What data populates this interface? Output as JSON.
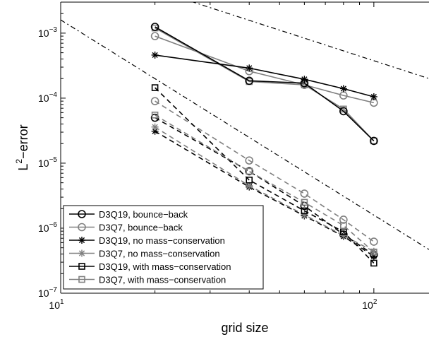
{
  "chart_data": {
    "type": "line",
    "x_scale": "log",
    "y_scale": "log",
    "xlim": [
      10,
      150
    ],
    "ylim": [
      1e-07,
      0.003
    ],
    "xlabel": "grid size",
    "ylabel_base": "L",
    "ylabel_sup": "2",
    "ylabel_rest": "−error",
    "title": "",
    "grid": false,
    "legend_position": "bottom-left",
    "x_ticks": [
      {
        "value": 10,
        "base": "10",
        "exp": "1"
      },
      {
        "value": 100,
        "base": "10",
        "exp": "2"
      }
    ],
    "y_ticks": [
      {
        "value": 1e-07,
        "base": "10",
        "exp": "−7"
      },
      {
        "value": 1e-06,
        "base": "10",
        "exp": "−6"
      },
      {
        "value": 1e-05,
        "base": "10",
        "exp": "−5"
      },
      {
        "value": 0.0001,
        "base": "10",
        "exp": "−4"
      },
      {
        "value": 0.001,
        "base": "10",
        "exp": "−3"
      }
    ],
    "reference_lines": [
      {
        "x": [
          10,
          150
        ],
        "y": [
          0.0016,
          4.7e-07
        ],
        "color": "#000000",
        "dash": "dashdot"
      },
      {
        "x": [
          24,
          150
        ],
        "y": [
          0.0035,
          0.0002
        ],
        "color": "#000000",
        "dash": "dashdot"
      },
      {
        "x": [
          10,
          150
        ],
        "y": [
          0.0016,
          4.7e-07
        ],
        "color": "#000000",
        "dash": "dashdot",
        "offset": 0
      }
    ],
    "series": [
      {
        "name": "D3Q19, bounce−back",
        "color": "#000000",
        "marker": "circle",
        "dash": "solid",
        "x": [
          20,
          40,
          60,
          80,
          100
        ],
        "y": [
          0.00125,
          0.000185,
          0.00017,
          6.3e-05,
          2.2e-05
        ]
      },
      {
        "name": "D3Q7, bounce−back",
        "color": "#808080",
        "marker": "circle",
        "dash": "dashed",
        "x": [
          20,
          40,
          60,
          80,
          100
        ],
        "y": [
          9e-05,
          1.1e-05,
          3.4e-06,
          1.35e-06,
          6.2e-07
        ]
      },
      {
        "name": "D3Q19, no mass−conservation",
        "color": "#000000",
        "marker": "star",
        "dash": "solid",
        "x": [
          20,
          40,
          60,
          80,
          100
        ],
        "y": [
          0.00046,
          0.00029,
          0.000195,
          0.00014,
          0.000105
        ]
      },
      {
        "name": "D3Q7, no mass−conservation",
        "color": "#808080",
        "marker": "star",
        "dash": "dashed",
        "x": [
          20,
          40,
          60,
          80,
          100
        ],
        "y": [
          3.6e-05,
          4.5e-06,
          1.6e-06,
          7.7e-07,
          4.4e-07
        ]
      },
      {
        "name": "D3Q19, with mass−conservation",
        "color": "#000000",
        "marker": "square",
        "dash": "dashed",
        "x": [
          20,
          40,
          60,
          80,
          100
        ],
        "y": [
          0.000145,
          5.5e-06,
          1.85e-06,
          8.8e-07,
          2.9e-07
        ]
      },
      {
        "name": "D3Q7, with mass−conservation",
        "color": "#808080",
        "marker": "square",
        "dash": "dashed",
        "x": [
          20,
          40,
          60,
          80,
          100
        ],
        "y": [
          5.5e-05,
          7.5e-06,
          2.5e-06,
          1.1e-06,
          4.3e-07
        ]
      }
    ],
    "extra_series": [
      {
        "name": "",
        "color": "#808080",
        "marker": "circle",
        "dash": "solid",
        "x": [
          20,
          40,
          60,
          80,
          100
        ],
        "y": [
          0.0009,
          0.00026,
          0.00016,
          0.00011,
          8.5e-05
        ]
      },
      {
        "name": "",
        "color": "#000000",
        "marker": "circle",
        "dash": "dashed",
        "x": [
          20,
          40,
          60,
          80,
          100
        ],
        "y": [
          5e-05,
          7.5e-06,
          2.2e-06,
          8e-07,
          3.9e-07
        ]
      },
      {
        "name": "",
        "color": "#000000",
        "marker": "star",
        "dash": "dashed",
        "x": [
          20,
          40,
          60,
          80,
          100
        ],
        "y": [
          3.1e-05,
          4.3e-06,
          1.55e-06,
          7.5e-07,
          3.7e-07
        ]
      },
      {
        "name": "",
        "color": "#808080",
        "marker": "square",
        "dash": "solid",
        "x": [
          20,
          40,
          60,
          80,
          100
        ],
        "y": [
          0.0012,
          0.00018,
          0.00016,
          6.8e-05,
          2.2e-05
        ]
      }
    ]
  }
}
